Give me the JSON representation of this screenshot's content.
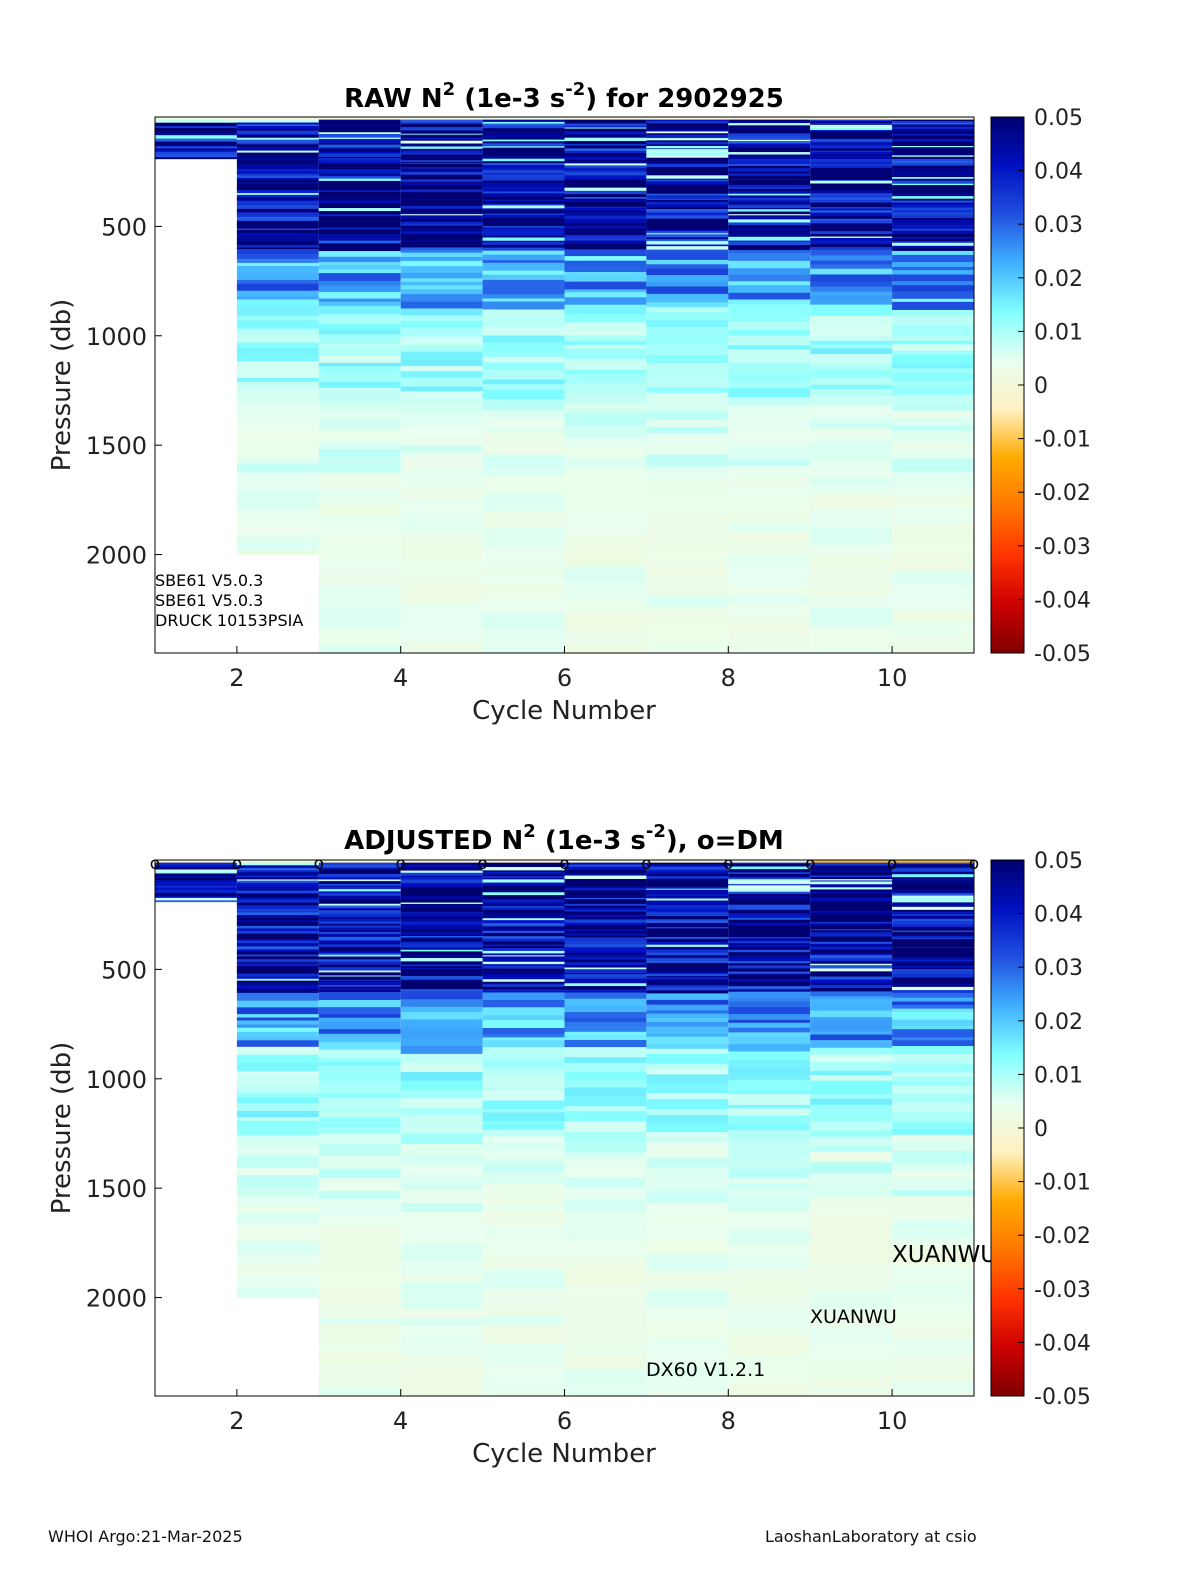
{
  "footer": {
    "left": "WHOI Argo:21-Mar-2025",
    "right": "LaoshanLaboratory at csio"
  },
  "colorbar": {
    "ticks": [
      "0.05",
      "0.04",
      "0.03",
      "0.02",
      "0.01",
      "0",
      "-0.01",
      "-0.02",
      "-0.03",
      "-0.04",
      "-0.05"
    ],
    "range": [
      -0.05,
      0.05
    ],
    "colors": [
      "#7f0000",
      "#cc0000",
      "#ff3300",
      "#ff7700",
      "#ffaa00",
      "#fff0c0",
      "#e8fff0",
      "#80ffff",
      "#40b0ff",
      "#2050e0",
      "#0010c0",
      "#000070"
    ]
  },
  "chart_data": [
    {
      "type": "heatmap",
      "title_main": "RAW N",
      "title_sup": "2",
      "title_mid": " (1e-3 s",
      "title_sup2": "-2",
      "title_end": ") for 2902925",
      "xlabel": "Cycle Number",
      "ylabel": "Pressure (db)",
      "xlim": [
        1,
        11
      ],
      "ylim": [
        0,
        2450
      ],
      "y_reversed": true,
      "xticks": [
        "2",
        "4",
        "6",
        "8",
        "10"
      ],
      "yticks": [
        "500",
        "1000",
        "1500",
        "2000"
      ],
      "cycles": [
        1,
        2,
        3,
        4,
        5,
        6,
        7,
        8,
        9,
        10
      ],
      "max_pressure": [
        190,
        2000,
        2450,
        2450,
        2450,
        2450,
        2450,
        2450,
        2450,
        2450
      ],
      "annotations": [
        "SBE61 V5.0.3",
        "SBE61 V5.0.3",
        "DRUCK 10153PSIA"
      ],
      "dm_markers": false
    },
    {
      "type": "heatmap",
      "title_main": "ADJUSTED N",
      "title_sup": "2",
      "title_mid": " (1e-3 s",
      "title_sup2": "-2",
      "title_end": "), o=DM",
      "xlabel": "Cycle Number",
      "ylabel": "Pressure (db)",
      "xlim": [
        1,
        11
      ],
      "ylim": [
        0,
        2450
      ],
      "y_reversed": true,
      "xticks": [
        "2",
        "4",
        "6",
        "8",
        "10"
      ],
      "yticks": [
        "500",
        "1000",
        "1500",
        "2000"
      ],
      "cycles": [
        1,
        2,
        3,
        4,
        5,
        6,
        7,
        8,
        9,
        10
      ],
      "max_pressure": [
        190,
        2000,
        2450,
        2450,
        2450,
        2450,
        2450,
        2450,
        2450,
        2450
      ],
      "annotations": [
        "XUANWU",
        "XUANWU",
        "DX60 V1.2.1"
      ],
      "dm_marker_symbol": "o",
      "dm_markers": true
    }
  ]
}
